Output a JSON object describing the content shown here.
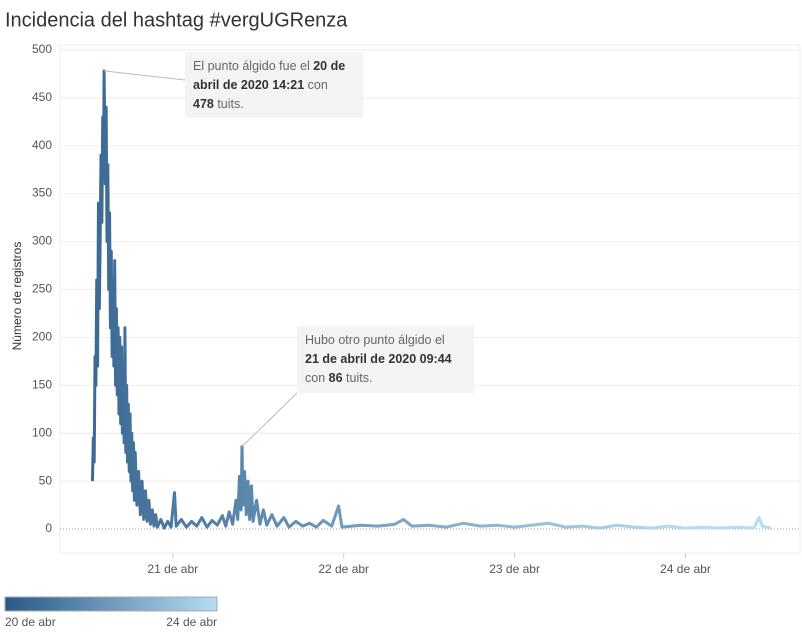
{
  "chart_data": {
    "type": "line",
    "title": "Incidencia del hashtag #vergUGRenza",
    "ylabel": "Número de registros",
    "x": [
      20.53,
      20.535,
      20.54,
      20.545,
      20.55,
      20.555,
      20.56,
      20.565,
      20.57,
      20.575,
      20.58,
      20.585,
      20.59,
      20.595,
      20.598,
      20.605,
      20.61,
      20.615,
      20.62,
      20.625,
      20.63,
      20.635,
      20.64,
      20.645,
      20.65,
      20.655,
      20.66,
      20.665,
      20.67,
      20.675,
      20.68,
      20.685,
      20.69,
      20.695,
      20.7,
      20.705,
      20.71,
      20.715,
      20.72,
      20.725,
      20.73,
      20.735,
      20.74,
      20.745,
      20.75,
      20.755,
      20.76,
      20.765,
      20.77,
      20.775,
      20.78,
      20.79,
      20.8,
      20.81,
      20.82,
      20.83,
      20.84,
      20.85,
      20.86,
      20.87,
      20.88,
      20.89,
      20.9,
      20.91,
      20.93,
      20.95,
      20.97,
      20.99,
      21.01,
      21.02,
      21.05,
      21.08,
      21.11,
      21.14,
      21.17,
      21.2,
      21.23,
      21.26,
      21.29,
      21.31,
      21.33,
      21.35,
      21.37,
      21.38,
      21.39,
      21.4,
      21.405,
      21.41,
      21.42,
      21.43,
      21.44,
      21.45,
      21.46,
      21.47,
      21.49,
      21.51,
      21.53,
      21.55,
      21.58,
      21.61,
      21.65,
      21.68,
      21.72,
      21.76,
      21.8,
      21.84,
      21.88,
      21.93,
      21.97,
      21.99,
      22.1,
      22.2,
      22.3,
      22.35,
      22.4,
      22.5,
      22.6,
      22.7,
      22.8,
      22.9,
      23.0,
      23.1,
      23.2,
      23.3,
      23.4,
      23.5,
      23.6,
      23.7,
      23.8,
      23.9,
      24.0,
      24.1,
      24.2,
      24.3,
      24.4,
      24.43,
      24.45,
      24.5
    ],
    "series": [
      {
        "values": [
          50,
          95,
          70,
          180,
          150,
          260,
          170,
          340,
          230,
          300,
          390,
          320,
          430,
          380,
          478,
          360,
          440,
          300,
          380,
          250,
          330,
          210,
          290,
          180,
          260,
          170,
          280,
          150,
          230,
          140,
          210,
          120,
          200,
          110,
          190,
          100,
          170,
          90,
          210,
          80,
          150,
          70,
          130,
          60,
          120,
          50,
          100,
          40,
          90,
          30,
          80,
          25,
          60,
          15,
          50,
          10,
          40,
          8,
          30,
          5,
          20,
          3,
          15,
          2,
          10,
          1,
          8,
          2,
          38,
          3,
          10,
          2,
          8,
          3,
          12,
          2,
          9,
          4,
          14,
          3,
          18,
          5,
          30,
          10,
          55,
          20,
          86,
          25,
          60,
          15,
          50,
          10,
          45,
          8,
          30,
          5,
          20,
          4,
          15,
          3,
          12,
          2,
          8,
          3,
          6,
          2,
          9,
          3,
          24,
          2,
          4,
          3,
          5,
          10,
          3,
          4,
          2,
          6,
          3,
          4,
          2,
          4,
          6,
          2,
          3,
          1,
          4,
          2,
          1,
          3,
          1,
          2,
          1,
          2,
          1,
          12,
          3,
          1
        ]
      }
    ],
    "xlim": [
      20.34,
      24.67
    ],
    "ylim": [
      -25,
      505
    ],
    "xticks": [
      {
        "value": 21,
        "label": "21 de abr"
      },
      {
        "value": 22,
        "label": "22 de abr"
      },
      {
        "value": 23,
        "label": "23 de abr"
      },
      {
        "value": 24,
        "label": "24 de abr"
      }
    ],
    "yticks": [
      0,
      50,
      100,
      150,
      200,
      250,
      300,
      350,
      400,
      450,
      500
    ],
    "grid": true,
    "color_scale": {
      "stops": [
        {
          "value": 20,
          "label": "20 de abr"
        },
        {
          "value": 24,
          "label": "24 de abr"
        }
      ],
      "colors": [
        "#2a5886",
        "#b5dcf2"
      ]
    },
    "annotations": [
      {
        "x": 20.598,
        "y": 478,
        "lines": [
          [
            {
              "text": "El punto álgido fue el "
            },
            {
              "text": "20 de",
              "bold": true
            }
          ],
          [
            {
              "text": "abril de 2020 14:21",
              "bold": true
            },
            {
              "text": " con"
            }
          ],
          [
            {
              "text": "478",
              "bold": true
            },
            {
              "text": " tuits."
            }
          ]
        ]
      },
      {
        "x": 21.405,
        "y": 86,
        "lines": [
          [
            {
              "text": "Hubo otro punto álgido el"
            }
          ],
          [
            {
              "text": "21 de abril de 2020 09:44",
              "bold": true
            }
          ],
          [
            {
              "text": "con "
            },
            {
              "text": "86",
              "bold": true
            },
            {
              "text": " tuits."
            }
          ]
        ]
      }
    ]
  }
}
